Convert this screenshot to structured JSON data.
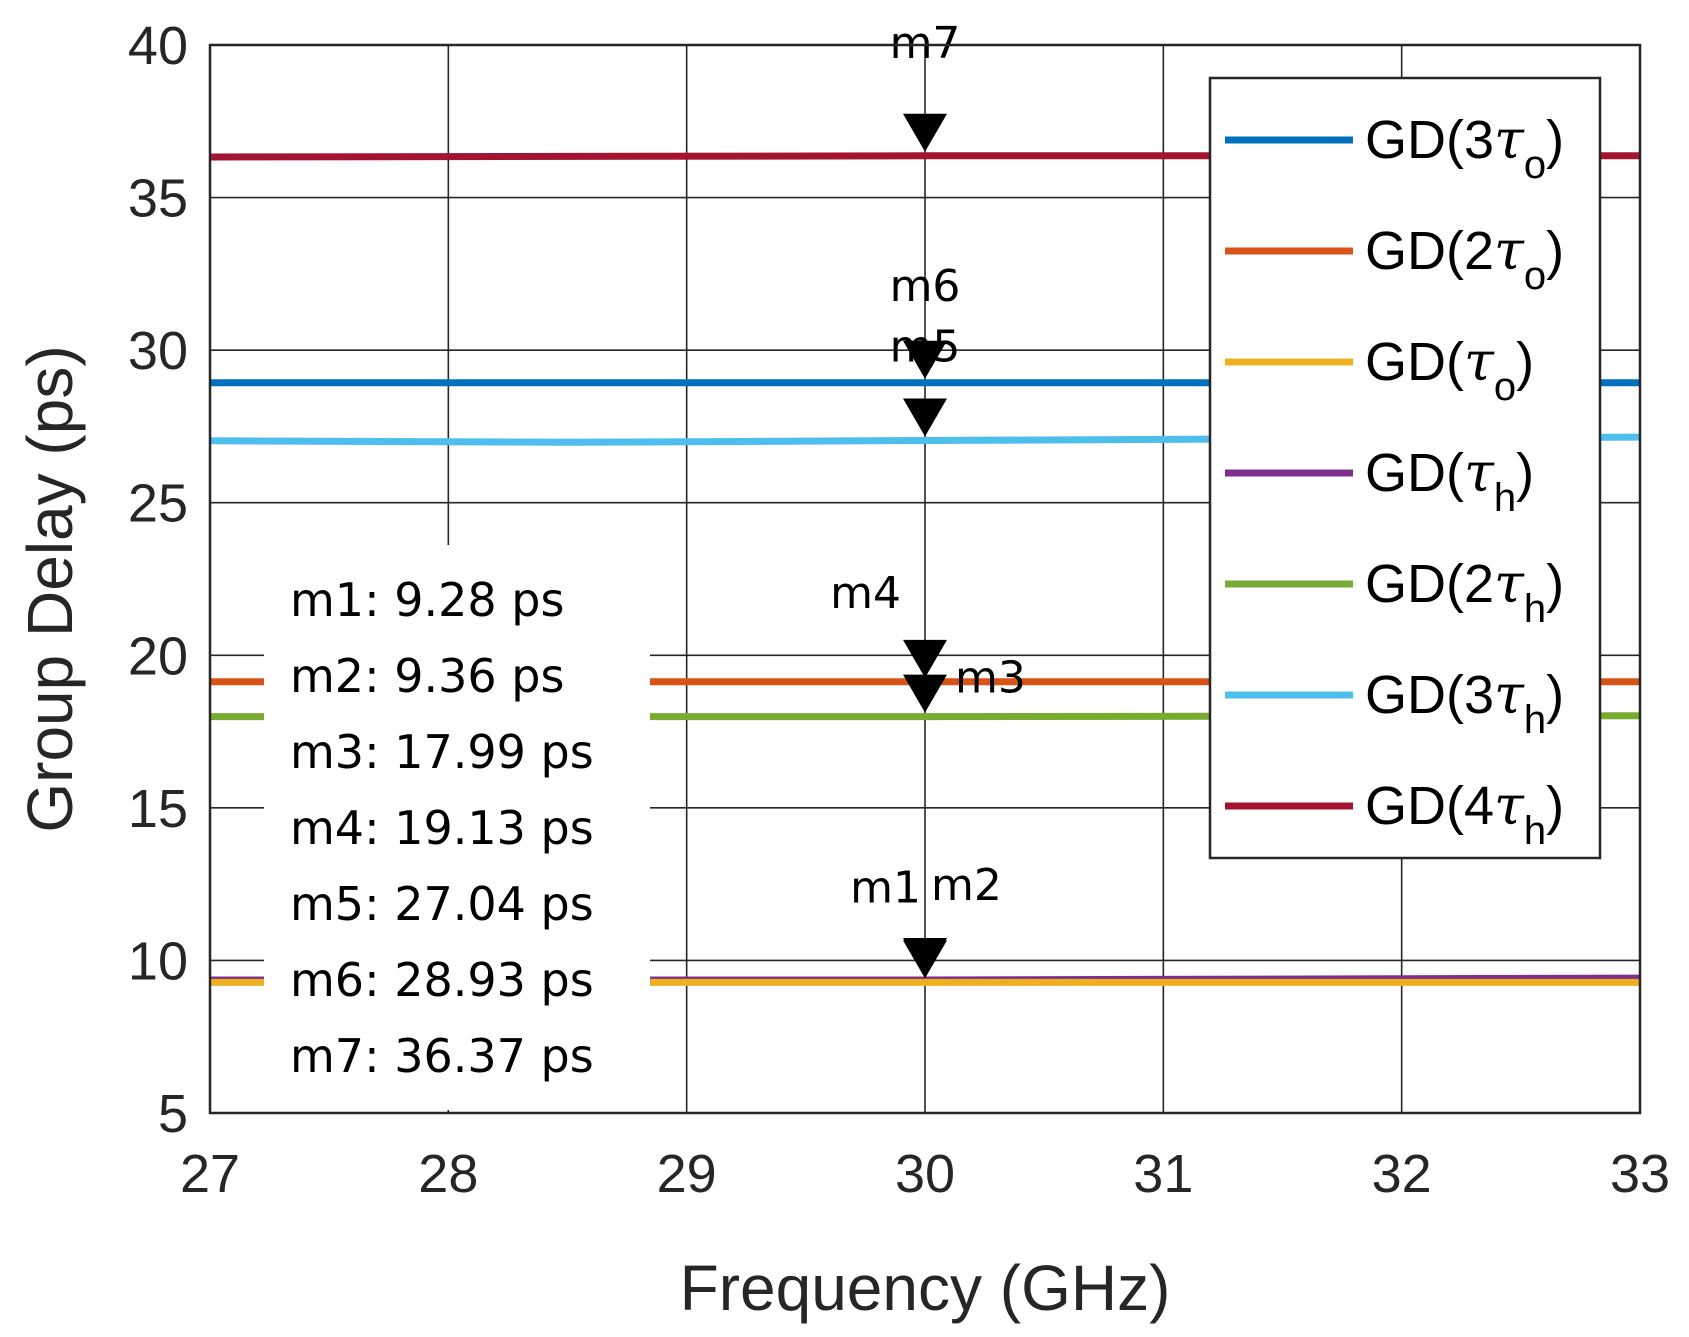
{
  "chart_data": {
    "type": "line",
    "xlabel": "Frequency (GHz)",
    "ylabel": "Group Delay (ps)",
    "xlim": [
      27,
      33
    ],
    "ylim": [
      5,
      40
    ],
    "xticks": [
      27,
      28,
      29,
      30,
      31,
      32,
      33
    ],
    "yticks": [
      5,
      10,
      15,
      20,
      25,
      30,
      35,
      40
    ],
    "grid": true,
    "legend_position": "top-right",
    "series": [
      {
        "name": "GD(3τo)",
        "label": "GD(3",
        "sub": "o",
        "color": "#0072BD",
        "x": [
          27,
          30,
          33
        ],
        "y": [
          28.93,
          28.93,
          28.93
        ]
      },
      {
        "name": "GD(2τo)",
        "label": "GD(2",
        "sub": "o",
        "color": "#D95319",
        "x": [
          27,
          30,
          33
        ],
        "y": [
          19.13,
          19.13,
          19.13
        ]
      },
      {
        "name": "GD(τo)",
        "label": "GD(",
        "sub": "o",
        "color": "#EDB120",
        "x": [
          27,
          30,
          33
        ],
        "y": [
          9.28,
          9.28,
          9.28
        ]
      },
      {
        "name": "GD(τh)",
        "label": "GD(",
        "sub": "h",
        "color": "#7E2F8E",
        "x": [
          27,
          30,
          33
        ],
        "y": [
          9.36,
          9.36,
          9.42
        ]
      },
      {
        "name": "GD(2τh)",
        "label": "GD(2",
        "sub": "h",
        "color": "#77AC30",
        "x": [
          27,
          30,
          33
        ],
        "y": [
          17.99,
          17.99,
          18.02
        ]
      },
      {
        "name": "GD(3τh)",
        "label": "GD(3",
        "sub": "h",
        "color": "#4DBEEE",
        "x": [
          27,
          28.5,
          30,
          33
        ],
        "y": [
          27.03,
          26.98,
          27.04,
          27.15
        ]
      },
      {
        "name": "GD(4τh)",
        "label": "GD(4",
        "sub": "h",
        "color": "#A2142F",
        "x": [
          27,
          30,
          33
        ],
        "y": [
          36.33,
          36.37,
          36.37
        ]
      }
    ],
    "markers": [
      {
        "id": "m1",
        "x": 30,
        "y": 9.28
      },
      {
        "id": "m2",
        "x": 30,
        "y": 9.36
      },
      {
        "id": "m3",
        "x": 30,
        "y": 17.99
      },
      {
        "id": "m4",
        "x": 30,
        "y": 19.13
      },
      {
        "id": "m5",
        "x": 30,
        "y": 27.04
      },
      {
        "id": "m6",
        "x": 30,
        "y": 28.93
      },
      {
        "id": "m7",
        "x": 30,
        "y": 36.37
      }
    ],
    "marker_labels": [
      "m7",
      "m6",
      "m5",
      "m4",
      "m3",
      "m1",
      "m2"
    ],
    "marker_notes": [
      "m1: 9.28 ps",
      "m2: 9.36 ps",
      "m3: 17.99 ps",
      "m4: 19.13 ps",
      "m5: 27.04 ps",
      "m6: 28.93 ps",
      "m7: 36.37 ps"
    ],
    "tau_symbol": "τ",
    "close_paren": ")"
  }
}
